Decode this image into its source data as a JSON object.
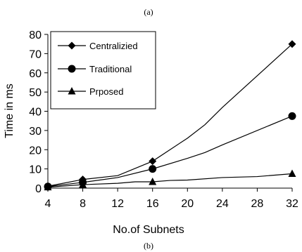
{
  "caption_top": "(a)",
  "caption_bottom": "(b)",
  "chart_data": {
    "type": "line",
    "title": "",
    "xlabel": "No.of Subnets",
    "ylabel": "Time in ms",
    "xlim": [
      4,
      32
    ],
    "ylim": [
      0,
      80
    ],
    "xticks": [
      4,
      8,
      12,
      16,
      20,
      24,
      28,
      32
    ],
    "yticks": [
      0,
      10,
      20,
      30,
      40,
      50,
      60,
      70,
      80
    ],
    "grid": false,
    "legend_position": "top-left",
    "series": [
      {
        "name": "Centralizied",
        "marker": "diamond",
        "color": "#000000",
        "x": [
          4,
          8,
          12,
          16,
          20,
          22,
          24,
          32
        ],
        "y": [
          1,
          4.5,
          6.5,
          14,
          26,
          33,
          42,
          75
        ],
        "marker_x": [
          4,
          8,
          16,
          32
        ],
        "marker_y": [
          1,
          4.5,
          14,
          75
        ]
      },
      {
        "name": "Traditional",
        "marker": "circle",
        "color": "#000000",
        "x": [
          4,
          8,
          12,
          16,
          20,
          22,
          24,
          32
        ],
        "y": [
          0.8,
          3,
          5.5,
          10,
          15.5,
          18.5,
          22.5,
          37.5
        ],
        "marker_x": [
          4,
          8,
          16,
          32
        ],
        "marker_y": [
          0.8,
          3,
          10,
          37.5
        ]
      },
      {
        "name": "Prposed",
        "marker": "triangle",
        "color": "#000000",
        "x": [
          4,
          8,
          12,
          14,
          16,
          18,
          20,
          24,
          28,
          32
        ],
        "y": [
          0.5,
          1.8,
          2.5,
          3.3,
          3.3,
          4,
          4.2,
          5.5,
          6,
          7.5
        ],
        "marker_x": [
          4,
          8,
          16,
          32
        ],
        "marker_y": [
          0.5,
          1.8,
          3.3,
          7.5
        ]
      }
    ]
  }
}
